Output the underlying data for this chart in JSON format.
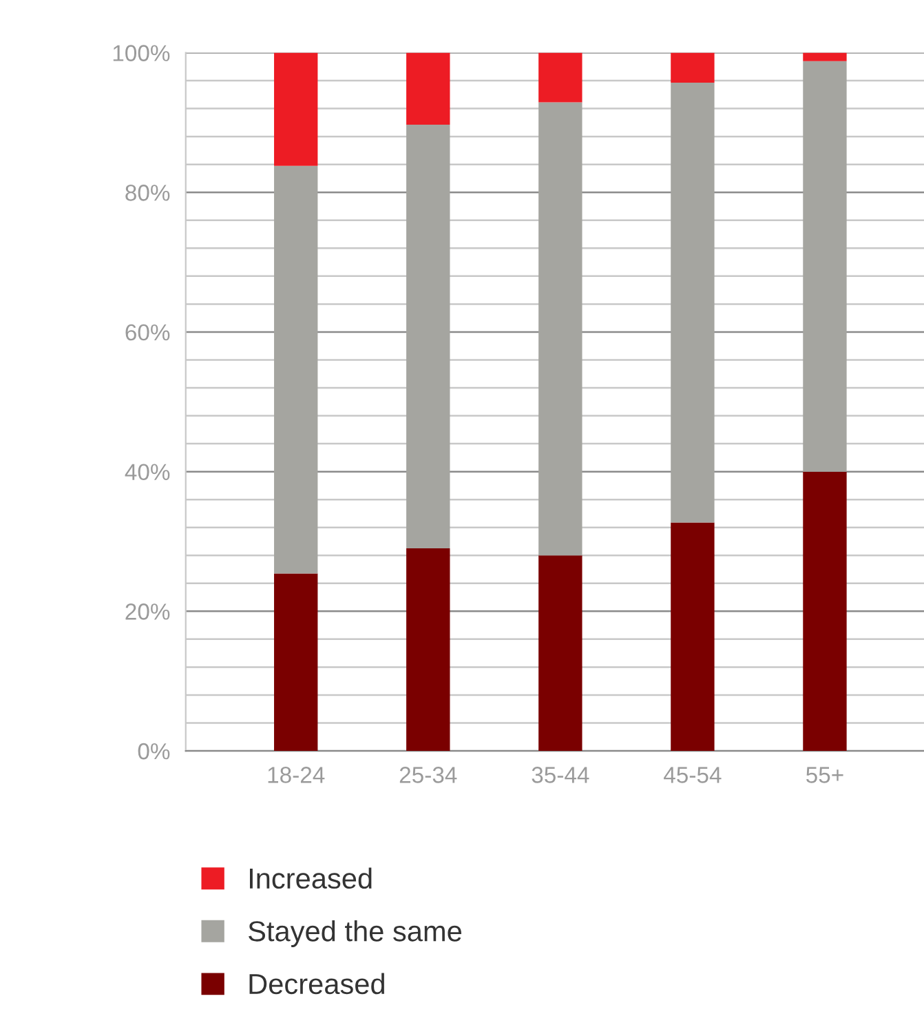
{
  "chart_data": {
    "type": "bar",
    "stacked": true,
    "categories": [
      "18-24",
      "25-34",
      "35-44",
      "45-54",
      "55+"
    ],
    "series": [
      {
        "name": "Decreased",
        "color": "#7a0000",
        "values": [
          25.4,
          29.0,
          28.0,
          32.7,
          40.0
        ]
      },
      {
        "name": "Stayed the same",
        "color": "#a5a5a0",
        "values": [
          58.4,
          60.7,
          64.9,
          63.0,
          58.8
        ]
      },
      {
        "name": "Increased",
        "color": "#ed1c24",
        "values": [
          16.2,
          10.3,
          7.1,
          4.3,
          1.2
        ]
      }
    ],
    "ylim": [
      0,
      100
    ],
    "yticks": [
      {
        "value": 0,
        "label": "0%"
      },
      {
        "value": 4,
        "label": null
      },
      {
        "value": 8,
        "label": null
      },
      {
        "value": 12,
        "label": null
      },
      {
        "value": 16,
        "label": null
      },
      {
        "value": 20,
        "label": "20%"
      },
      {
        "value": 24,
        "label": null
      },
      {
        "value": 28,
        "label": null
      },
      {
        "value": 32,
        "label": null
      },
      {
        "value": 36,
        "label": null
      },
      {
        "value": 40,
        "label": "40%"
      },
      {
        "value": 44,
        "label": null
      },
      {
        "value": 48,
        "label": null
      },
      {
        "value": 52,
        "label": null
      },
      {
        "value": 56,
        "label": null
      },
      {
        "value": 60,
        "label": "60%"
      },
      {
        "value": 64,
        "label": null
      },
      {
        "value": 68,
        "label": null
      },
      {
        "value": 72,
        "label": null
      },
      {
        "value": 76,
        "label": null
      },
      {
        "value": 80,
        "label": "80%"
      },
      {
        "value": 84,
        "label": null
      },
      {
        "value": 88,
        "label": null
      },
      {
        "value": 92,
        "label": null
      },
      {
        "value": 96,
        "label": null
      },
      {
        "value": 100,
        "label": "100%"
      }
    ],
    "grid": "y",
    "legend": "bottom"
  }
}
